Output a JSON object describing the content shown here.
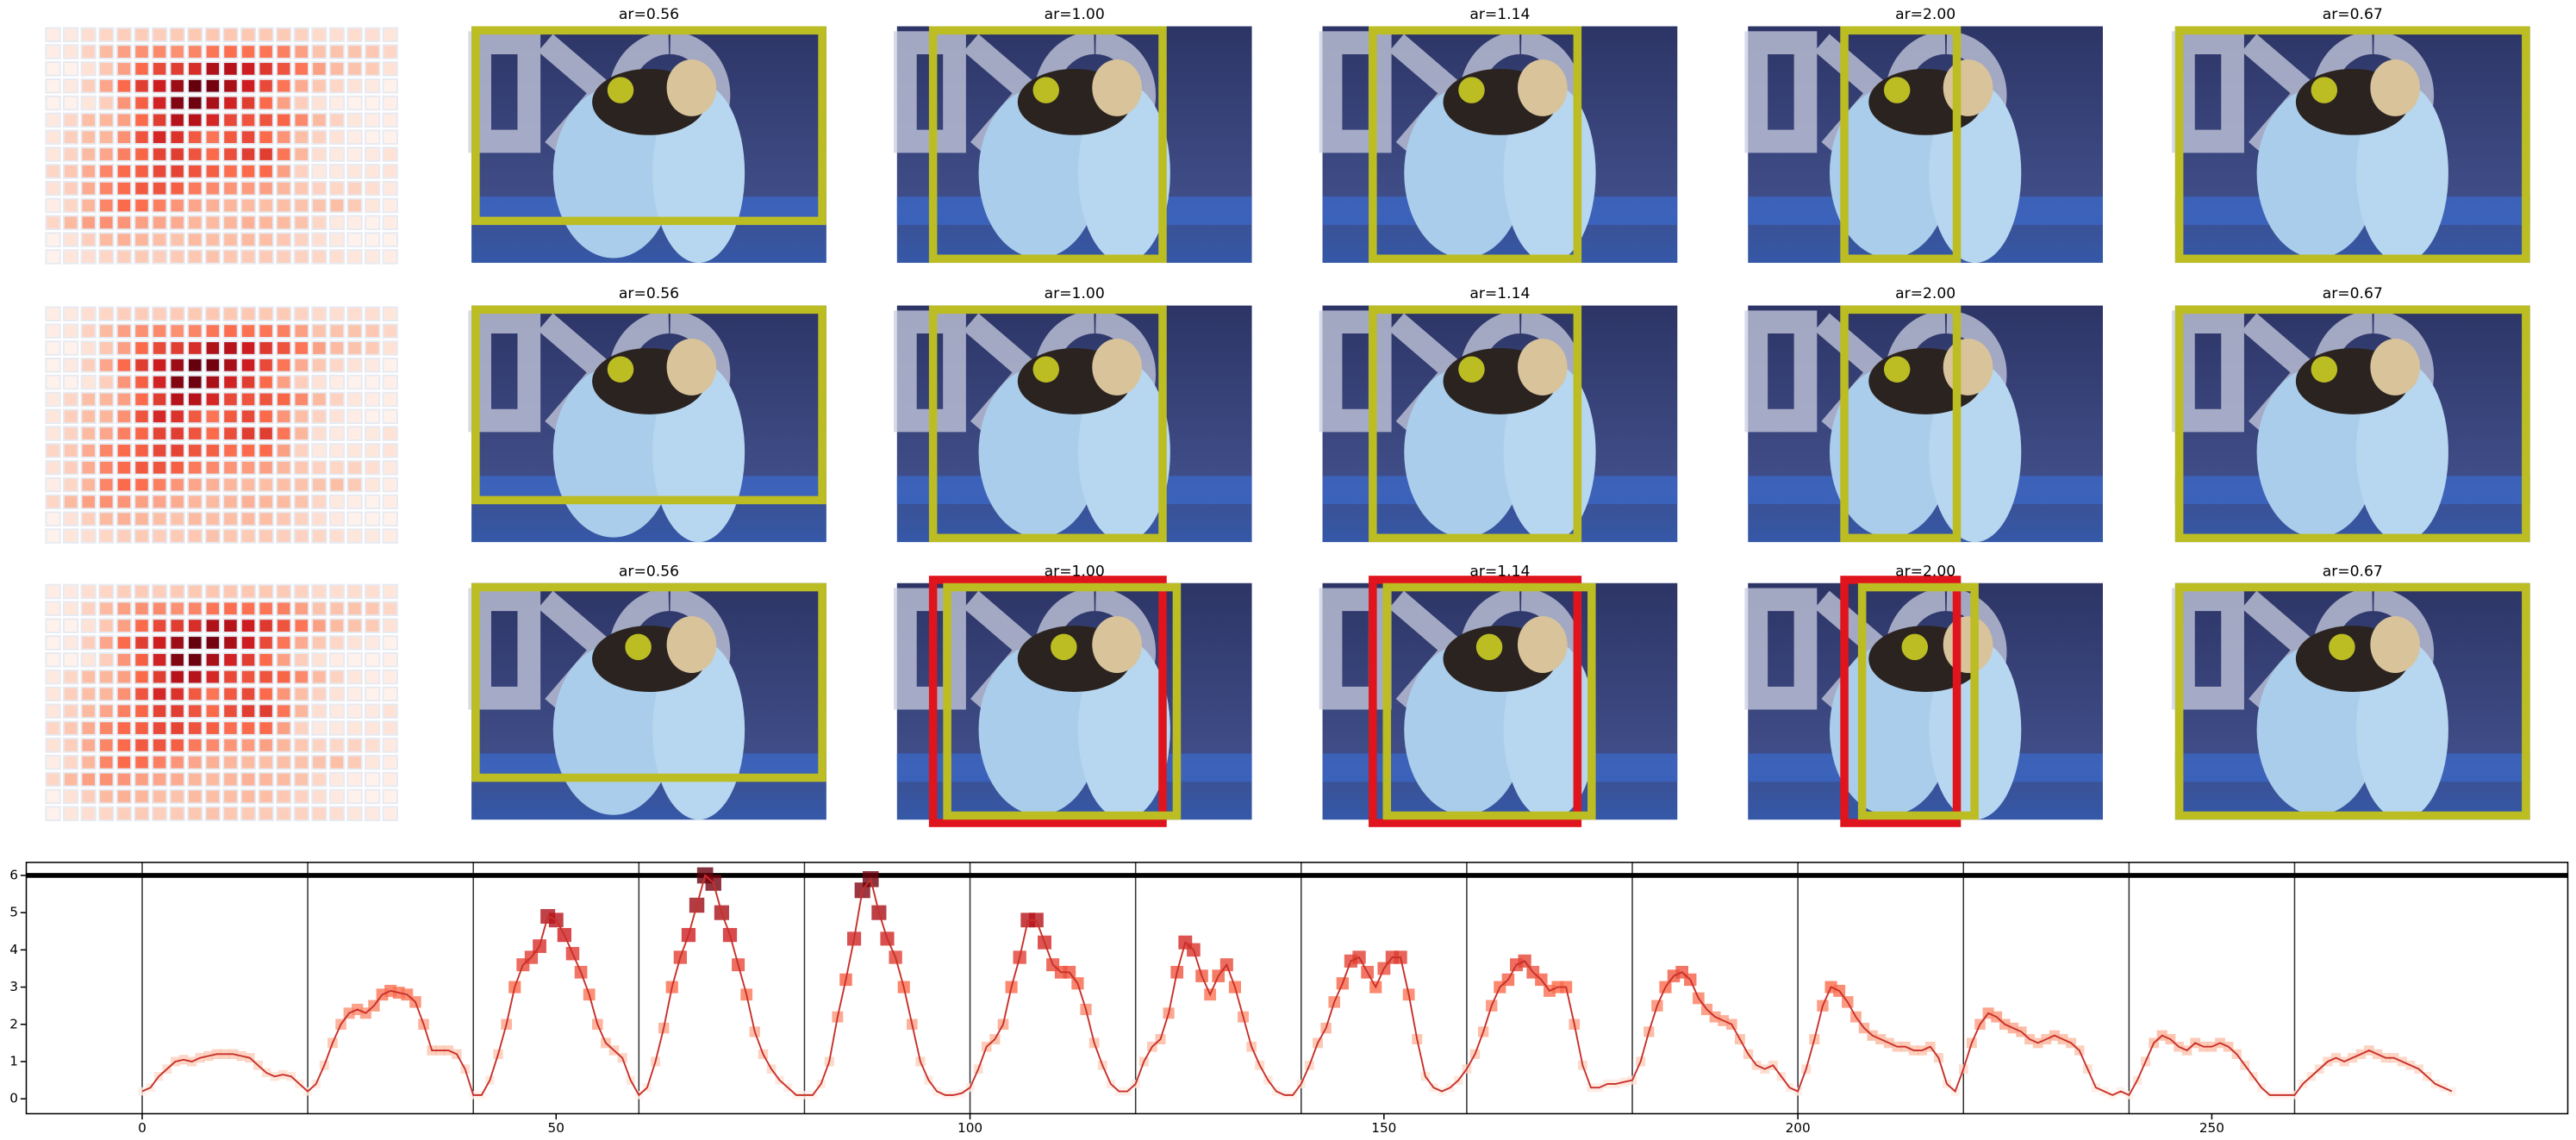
{
  "panels": {
    "titles": [
      [
        "ar=0.56",
        "ar=1.00",
        "ar=1.14",
        "ar=2.00",
        "ar=0.67"
      ],
      [
        "ar=0.56",
        "ar=1.00",
        "ar=1.14",
        "ar=2.00",
        "ar=0.67"
      ],
      [
        "ar=0.56",
        "ar=1.00",
        "ar=1.14",
        "ar=2.00",
        "ar=0.67"
      ]
    ]
  },
  "chart_data": {
    "type": "line",
    "color": "#c8302a",
    "colormap": "Reds",
    "x": [
      0,
      1,
      2,
      3,
      4,
      5,
      6,
      7,
      8,
      9,
      10,
      11,
      12,
      13,
      14,
      15,
      16,
      17,
      18,
      19,
      20,
      21,
      22,
      23,
      24,
      25,
      26,
      27,
      28,
      29,
      30,
      31,
      32,
      33,
      34,
      35,
      36,
      37,
      38,
      39,
      40,
      41,
      42,
      43,
      44,
      45,
      46,
      47,
      48,
      49,
      50,
      51,
      52,
      53,
      54,
      55,
      56,
      57,
      58,
      59,
      60,
      61,
      62,
      63,
      64,
      65,
      66,
      67,
      68,
      69,
      70,
      71,
      72,
      73,
      74,
      75,
      76,
      77,
      78,
      79,
      80,
      81,
      82,
      83,
      84,
      85,
      86,
      87,
      88,
      89,
      90,
      91,
      92,
      93,
      94,
      95,
      96,
      97,
      98,
      99,
      100,
      101,
      102,
      103,
      104,
      105,
      106,
      107,
      108,
      109,
      110,
      111,
      112,
      113,
      114,
      115,
      116,
      117,
      118,
      119,
      120,
      121,
      122,
      123,
      124,
      125,
      126,
      127,
      128,
      129,
      130,
      131,
      132,
      133,
      134,
      135,
      136,
      137,
      138,
      139,
      140,
      141,
      142,
      143,
      144,
      145,
      146,
      147,
      148,
      149,
      150,
      151,
      152,
      153,
      154,
      155,
      156,
      157,
      158,
      159,
      160,
      161,
      162,
      163,
      164,
      165,
      166,
      167,
      168,
      169,
      170,
      171,
      172,
      173,
      174,
      175,
      176,
      177,
      178,
      179,
      180,
      181,
      182,
      183,
      184,
      185,
      186,
      187,
      188,
      189,
      190,
      191,
      192,
      193,
      194,
      195,
      196,
      197,
      198,
      199,
      200,
      201,
      202,
      203,
      204,
      205,
      206,
      207,
      208,
      209,
      210,
      211,
      212,
      213,
      214,
      215,
      216,
      217,
      218,
      219,
      220,
      221,
      222,
      223,
      224,
      225,
      226,
      227,
      228,
      229,
      230,
      231,
      232,
      233,
      234,
      235,
      236,
      237,
      238,
      239,
      240,
      241,
      242,
      243,
      244,
      245,
      246,
      247,
      248,
      249,
      250,
      251,
      252,
      253,
      254,
      255,
      256,
      257,
      258,
      259,
      260,
      261,
      262,
      263,
      264,
      265,
      266,
      267,
      268,
      269,
      270,
      271,
      272,
      273,
      274,
      275,
      276,
      277,
      278,
      279
    ],
    "values": [
      0.2,
      0.3,
      0.6,
      0.8,
      1.0,
      1.05,
      1.0,
      1.1,
      1.15,
      1.2,
      1.2,
      1.2,
      1.15,
      1.1,
      0.9,
      0.7,
      0.6,
      0.65,
      0.6,
      0.4,
      0.2,
      0.4,
      0.9,
      1.5,
      2.0,
      2.3,
      2.4,
      2.3,
      2.5,
      2.8,
      2.9,
      2.85,
      2.8,
      2.6,
      2.0,
      1.3,
      1.3,
      1.3,
      1.2,
      0.8,
      0.1,
      0.1,
      0.5,
      1.2,
      2.0,
      3.0,
      3.6,
      3.8,
      4.1,
      4.9,
      4.8,
      4.4,
      3.9,
      3.4,
      2.8,
      2.0,
      1.5,
      1.3,
      1.1,
      0.5,
      0.1,
      0.3,
      1.0,
      1.9,
      3.0,
      3.8,
      4.4,
      5.2,
      6.0,
      5.8,
      5.0,
      4.4,
      3.6,
      2.8,
      1.8,
      1.2,
      0.8,
      0.5,
      0.3,
      0.1,
      0.1,
      0.1,
      0.4,
      1.0,
      2.2,
      3.2,
      4.3,
      5.6,
      5.9,
      5.0,
      4.3,
      3.8,
      3.0,
      2.0,
      1.0,
      0.5,
      0.2,
      0.1,
      0.1,
      0.15,
      0.3,
      0.8,
      1.4,
      1.6,
      2.0,
      3.0,
      3.8,
      4.8,
      4.8,
      4.2,
      3.6,
      3.4,
      3.4,
      3.1,
      2.4,
      1.5,
      0.9,
      0.4,
      0.2,
      0.2,
      0.4,
      1.0,
      1.4,
      1.6,
      2.3,
      3.4,
      4.2,
      4.0,
      3.3,
      2.8,
      3.3,
      3.6,
      3.0,
      2.2,
      1.4,
      0.9,
      0.5,
      0.2,
      0.1,
      0.1,
      0.4,
      0.9,
      1.5,
      1.9,
      2.6,
      3.1,
      3.7,
      3.8,
      3.4,
      3.0,
      3.5,
      3.8,
      3.8,
      2.8,
      1.6,
      0.6,
      0.3,
      0.2,
      0.3,
      0.5,
      0.8,
      1.2,
      1.8,
      2.5,
      3.0,
      3.2,
      3.6,
      3.7,
      3.4,
      3.2,
      2.9,
      3.0,
      3.0,
      2.0,
      0.9,
      0.3,
      0.3,
      0.4,
      0.4,
      0.45,
      0.5,
      1.0,
      1.8,
      2.5,
      3.0,
      3.3,
      3.4,
      3.2,
      2.7,
      2.4,
      2.2,
      2.1,
      2.0,
      1.6,
      1.2,
      0.9,
      0.8,
      0.9,
      0.6,
      0.3,
      0.2,
      0.8,
      1.6,
      2.5,
      3.0,
      2.9,
      2.6,
      2.2,
      1.9,
      1.7,
      1.6,
      1.5,
      1.4,
      1.4,
      1.3,
      1.3,
      1.4,
      1.1,
      0.4,
      0.2,
      0.8,
      1.5,
      2.0,
      2.3,
      2.2,
      2.0,
      1.9,
      1.8,
      1.6,
      1.5,
      1.6,
      1.7,
      1.6,
      1.5,
      1.3,
      0.8,
      0.3,
      0.2,
      0.1,
      0.2,
      0.1,
      0.5,
      1.0,
      1.5,
      1.7,
      1.6,
      1.4,
      1.3,
      1.5,
      1.4,
      1.4,
      1.5,
      1.4,
      1.2,
      0.9,
      0.6,
      0.3,
      0.1,
      0.1,
      0.1,
      0.1,
      0.4,
      0.6,
      0.8,
      1.0,
      1.1,
      1.0,
      1.1,
      1.2,
      1.3,
      1.2,
      1.1,
      1.1,
      1.0,
      0.9,
      0.8,
      0.6,
      0.4,
      0.3,
      0.2
    ],
    "xlim": [
      -14,
      293
    ],
    "ylim": [
      -0.4,
      6.35
    ],
    "xticks": [
      0,
      50,
      100,
      150,
      200,
      250
    ],
    "yticks": [
      0,
      1,
      2,
      3,
      4,
      5,
      6
    ],
    "vlines": [
      0,
      20,
      40,
      60,
      80,
      100,
      120,
      140,
      160,
      180,
      200,
      220,
      240,
      260
    ],
    "hlines": [
      6
    ]
  }
}
